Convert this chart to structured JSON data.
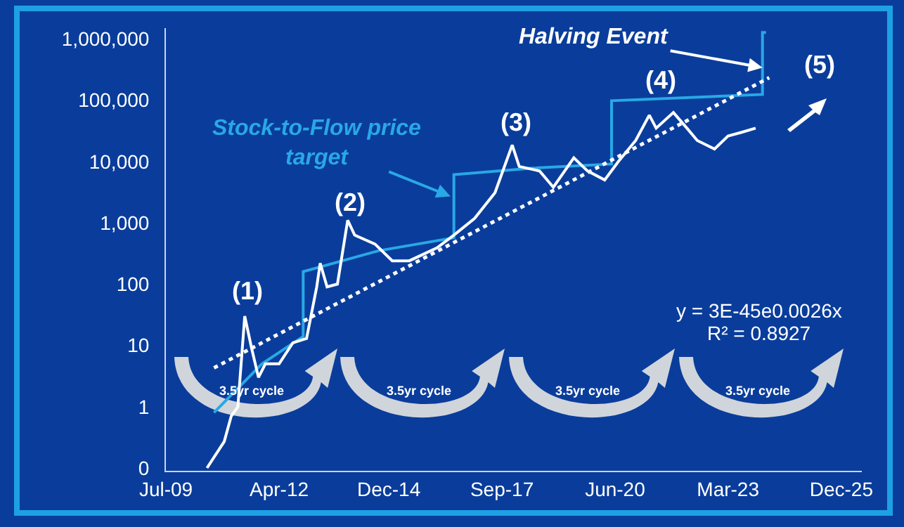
{
  "chart_data": {
    "type": "line",
    "log": "y",
    "grid": false,
    "marker": "none",
    "xlim": [
      "2009-07-01",
      "2026-06-01"
    ],
    "xticks": [
      {
        "value": "2009-07",
        "label": "Jul-09"
      },
      {
        "value": "2012-04",
        "label": "Apr-12"
      },
      {
        "value": "2014-12",
        "label": "Dec-14"
      },
      {
        "value": "2017-09",
        "label": "Sep-17"
      },
      {
        "value": "2020-06",
        "label": "Jun-20"
      },
      {
        "value": "2023-03",
        "label": "Mar-23"
      },
      {
        "value": "2025-12",
        "label": "Dec-25"
      }
    ],
    "ylim": [
      0.09,
      1500000
    ],
    "yticks": [
      {
        "value": 0.1,
        "label": "0"
      },
      1,
      10,
      100,
      {
        "value": 1000,
        "label": "1,000"
      },
      {
        "value": 10000,
        "label": "10,000"
      },
      {
        "value": 100000,
        "label": "100,000"
      },
      {
        "value": 1000000,
        "label": "1,000,000"
      }
    ],
    "series": [
      {
        "color": "#29a8e6",
        "line_style": "solid",
        "x": [
          "2010-09",
          "2011-11",
          "2012-11",
          "2012-11",
          "2014-09",
          "2016-07",
          "2016-07",
          "2018-06",
          "2020-05",
          "2020-05",
          "2024-01",
          "2024-01",
          "2024-02"
        ],
        "values": [
          0.8,
          5,
          14,
          160,
          350,
          570,
          6100,
          7800,
          9100,
          98000,
          124000,
          1270000,
          1270000
        ]
      },
      {
        "color": "#ffffff",
        "line_style": "dotted",
        "x": [
          "2010-09",
          "2024-03"
        ],
        "values": [
          4.3,
          233000
        ]
      },
      {
        "color": "#ffffff",
        "line_style": "solid",
        "x": [
          "2010-07",
          "2010-12",
          "2011-02",
          "2011-04",
          "2011-06",
          "2011-08",
          "2011-10",
          "2011-12",
          "2012-04",
          "2012-08",
          "2012-12",
          "2013-03",
          "2013-04",
          "2013-06",
          "2013-09",
          "2013-12",
          "2014-02",
          "2014-08",
          "2015-01",
          "2015-06",
          "2016-02",
          "2016-07",
          "2017-01",
          "2017-07",
          "2017-12",
          "2018-02",
          "2018-08",
          "2018-12",
          "2019-06",
          "2019-10",
          "2020-03",
          "2020-07",
          "2020-12",
          "2021-04",
          "2021-06",
          "2021-11",
          "2022-03",
          "2022-06",
          "2022-11",
          "2023-03",
          "2023-07",
          "2023-11"
        ],
        "values": [
          0.1,
          0.27,
          0.7,
          1,
          30,
          9,
          3,
          5,
          5,
          11,
          13,
          90,
          220,
          90,
          100,
          1100,
          630,
          450,
          240,
          240,
          390,
          630,
          1180,
          3100,
          18600,
          8300,
          7000,
          3800,
          11500,
          7000,
          5000,
          10000,
          22000,
          57000,
          35000,
          63000,
          35000,
          22000,
          16000,
          26000,
          30000,
          35000
        ]
      }
    ],
    "annotations": [
      {
        "text": "Stock-to-Flow price\ntarget",
        "x": "2016-06",
        "y": 2700
      },
      {
        "text": "Halving Event",
        "x": "2024-01",
        "y": 340000
      },
      "(1)",
      "(2)",
      "(3)",
      "(4)",
      "(5)",
      "3.5yr cycle",
      "3.5yr cycle",
      "3.5yr cycle",
      "3.5yr cycle",
      "y = 3E-45e0.0026x",
      "R² = 0.8927"
    ]
  }
}
